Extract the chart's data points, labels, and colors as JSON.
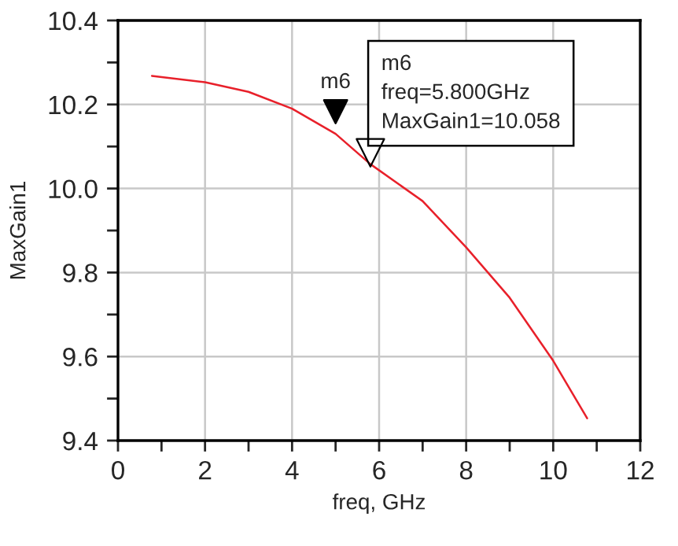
{
  "chart_data": {
    "type": "line",
    "xlabel": "freq, GHz",
    "ylabel": "MaxGain1",
    "series": [
      {
        "color": "#e8202a",
        "x": [
          0.78,
          2,
          3,
          4,
          5,
          5.8,
          7,
          8,
          9,
          10,
          10.78
        ],
        "values": [
          10.268,
          10.253,
          10.23,
          10.19,
          10.13,
          10.058,
          9.97,
          9.86,
          9.74,
          9.59,
          9.453
        ]
      }
    ],
    "annotations": [
      "m6",
      {
        "text": "m6\nfreq=5.800GHz\nMaxGain1=10.058",
        "x": 5.8,
        "y": 10.058
      }
    ],
    "xlim": [
      0,
      12
    ],
    "ylim": [
      9.4,
      10.4
    ],
    "xticks": [
      0,
      {
        "value": 1,
        "label": null
      },
      2,
      {
        "value": 3,
        "label": null
      },
      4,
      {
        "value": 5,
        "label": null
      },
      6,
      {
        "value": 7,
        "label": null
      },
      8,
      {
        "value": 9,
        "label": null
      },
      10,
      {
        "value": 11,
        "label": null
      },
      12
    ],
    "yticks": [
      {
        "value": 9.4,
        "label": "9.4"
      },
      {
        "value": 9.5,
        "label": null
      },
      {
        "value": 9.6,
        "label": "9.6"
      },
      {
        "value": 9.7,
        "label": null
      },
      {
        "value": 9.8,
        "label": "9.8"
      },
      {
        "value": 9.9,
        "label": null
      },
      {
        "value": 10.0,
        "label": "10.0"
      },
      {
        "value": 10.1,
        "label": null
      },
      {
        "value": 10.2,
        "label": "10.2"
      },
      {
        "value": 10.3,
        "label": null
      },
      {
        "value": 10.4,
        "label": "10.4"
      }
    ],
    "grid": true,
    "marker": "none",
    "line_style": "solid"
  }
}
